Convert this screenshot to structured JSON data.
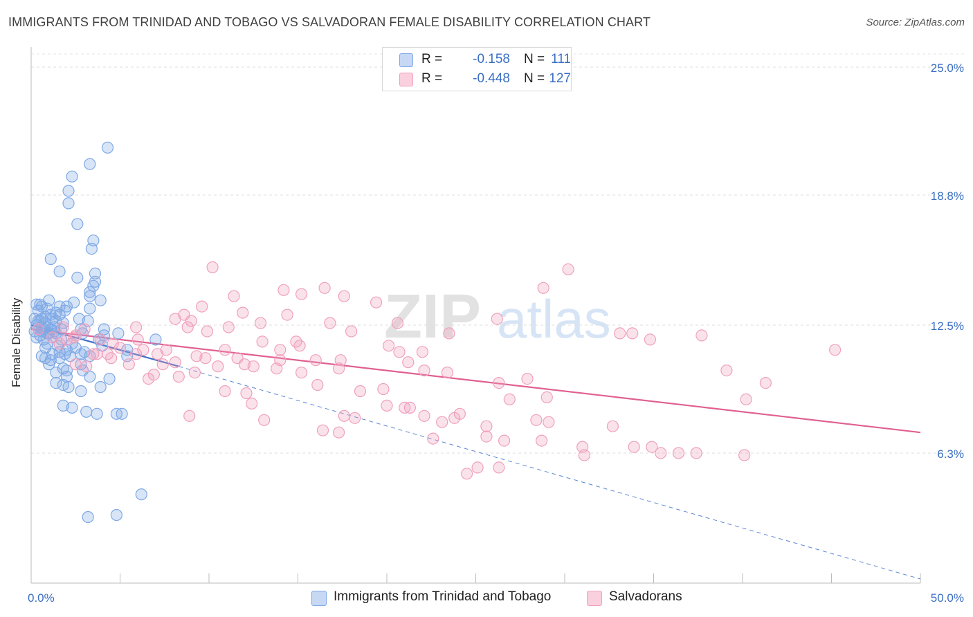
{
  "header": {
    "title": "IMMIGRANTS FROM TRINIDAD AND TOBAGO VS SALVADORAN FEMALE DISABILITY CORRELATION CHART",
    "source": "Source: ZipAtlas.com"
  },
  "watermark": {
    "zip": "ZIP",
    "atlas": "atlas"
  },
  "stats": [
    {
      "r_label": "R =",
      "r_value": "-0.158",
      "n_label": "N =",
      "n_value": "111",
      "color": "#7ea8e6"
    },
    {
      "r_label": "R =",
      "r_value": "-0.448",
      "n_label": "N =",
      "n_value": "127",
      "color": "#f0a0bc"
    }
  ],
  "legend": [
    {
      "label": "Immigrants from Trinidad and Tobago",
      "color": "#7ea8e6"
    },
    {
      "label": "Salvadorans",
      "color": "#f0a0bc"
    }
  ],
  "chart_data": {
    "type": "scatter",
    "title": "IMMIGRANTS FROM TRINIDAD AND TOBAGO VS SALVADORAN FEMALE DISABILITY CORRELATION CHART",
    "xlabel": "",
    "ylabel": "Female Disability",
    "x_min_label": "0.0%",
    "x_max_label": "50.0%",
    "y_tick_labels": [
      "6.3%",
      "12.5%",
      "18.8%",
      "25.0%"
    ],
    "xlim": [
      0,
      50
    ],
    "ylim": [
      0,
      25.5
    ],
    "y_ticks": [
      6.3,
      12.5,
      18.8,
      25.0
    ],
    "x_ticks": [
      0,
      5,
      10,
      15,
      20,
      25,
      30,
      35,
      40,
      45,
      50
    ],
    "grid": "horizontal-dashed",
    "legend_position": "bottom-center",
    "series": [
      {
        "name": "Immigrants from Trinidad and Tobago",
        "color": "#7ea8e6",
        "trend": {
          "x0": 0,
          "y0": 12.5,
          "x1": 8.3,
          "y1": 10.5,
          "dashed_to_x": 50,
          "dashed_to_y": 0.2
        },
        "points": [
          [
            4.3,
            21.1
          ],
          [
            3.3,
            20.3
          ],
          [
            2.3,
            19.7
          ],
          [
            2.1,
            19.0
          ],
          [
            2.1,
            18.4
          ],
          [
            2.6,
            17.4
          ],
          [
            3.5,
            16.6
          ],
          [
            3.4,
            16.2
          ],
          [
            1.1,
            15.7
          ],
          [
            1.6,
            15.1
          ],
          [
            3.6,
            15.0
          ],
          [
            2.6,
            14.8
          ],
          [
            3.6,
            14.6
          ],
          [
            3.5,
            14.4
          ],
          [
            3.3,
            14.1
          ],
          [
            3.3,
            13.9
          ],
          [
            3.9,
            13.7
          ],
          [
            1.0,
            13.7
          ],
          [
            0.5,
            13.5
          ],
          [
            0.3,
            13.5
          ],
          [
            0.6,
            13.4
          ],
          [
            2.4,
            13.6
          ],
          [
            1.6,
            13.4
          ],
          [
            2.0,
            13.4
          ],
          [
            0.9,
            13.3
          ],
          [
            0.4,
            13.2
          ],
          [
            1.9,
            13.2
          ],
          [
            1.4,
            13.1
          ],
          [
            1.6,
            13.0
          ],
          [
            1.1,
            13.0
          ],
          [
            3.3,
            13.3
          ],
          [
            0.8,
            12.9
          ],
          [
            0.6,
            12.8
          ],
          [
            1.2,
            12.8
          ],
          [
            1.4,
            12.7
          ],
          [
            2.7,
            12.8
          ],
          [
            3.2,
            12.7
          ],
          [
            0.5,
            12.7
          ],
          [
            1.8,
            12.6
          ],
          [
            0.8,
            12.6
          ],
          [
            0.3,
            12.5
          ],
          [
            0.6,
            12.4
          ],
          [
            0.9,
            12.4
          ],
          [
            1.3,
            12.4
          ],
          [
            0.4,
            12.3
          ],
          [
            0.7,
            12.3
          ],
          [
            0.2,
            12.2
          ],
          [
            1.1,
            12.3
          ],
          [
            1.7,
            12.3
          ],
          [
            2.8,
            12.3
          ],
          [
            4.1,
            12.3
          ],
          [
            0.6,
            12.2
          ],
          [
            0.9,
            12.1
          ],
          [
            1.4,
            12.1
          ],
          [
            4.9,
            12.1
          ],
          [
            2.9,
            12.1
          ],
          [
            4.1,
            12.0
          ],
          [
            0.5,
            12.0
          ],
          [
            1.2,
            11.9
          ],
          [
            0.3,
            11.9
          ],
          [
            0.7,
            11.8
          ],
          [
            1.7,
            11.8
          ],
          [
            3.8,
            11.8
          ],
          [
            7.0,
            11.8
          ],
          [
            0.9,
            11.6
          ],
          [
            1.5,
            11.5
          ],
          [
            2.3,
            11.6
          ],
          [
            4.0,
            11.5
          ],
          [
            0.8,
            11.4
          ],
          [
            2.0,
            11.3
          ],
          [
            5.4,
            11.3
          ],
          [
            1.6,
            11.2
          ],
          [
            2.8,
            11.1
          ],
          [
            1.9,
            11.1
          ],
          [
            1.2,
            11.1
          ],
          [
            0.6,
            11.0
          ],
          [
            2.2,
            11.0
          ],
          [
            0.8,
            10.9
          ],
          [
            1.6,
            10.9
          ],
          [
            3.3,
            11.0
          ],
          [
            5.4,
            11.0
          ],
          [
            1.1,
            10.8
          ],
          [
            1.0,
            10.6
          ],
          [
            2.8,
            10.6
          ],
          [
            1.8,
            10.4
          ],
          [
            2.0,
            10.3
          ],
          [
            2.9,
            10.3
          ],
          [
            1.4,
            10.2
          ],
          [
            2.0,
            10.0
          ],
          [
            3.3,
            10.0
          ],
          [
            4.4,
            9.9
          ],
          [
            1.4,
            9.7
          ],
          [
            1.8,
            9.6
          ],
          [
            2.1,
            9.5
          ],
          [
            3.9,
            9.5
          ],
          [
            2.8,
            9.3
          ],
          [
            1.8,
            8.6
          ],
          [
            2.3,
            8.5
          ],
          [
            3.1,
            8.3
          ],
          [
            3.7,
            8.2
          ],
          [
            4.8,
            8.2
          ],
          [
            5.1,
            8.2
          ],
          [
            6.2,
            4.3
          ],
          [
            3.2,
            3.2
          ],
          [
            4.8,
            3.3
          ],
          [
            1.3,
            12.2
          ],
          [
            0.4,
            12.7
          ],
          [
            2.5,
            11.4
          ],
          [
            1.0,
            12.1
          ],
          [
            3.0,
            11.2
          ],
          [
            0.2,
            12.8
          ]
        ]
      },
      {
        "name": "Salvadorans",
        "color": "#f0a0bc",
        "trend": {
          "x0": 0,
          "y0": 12.3,
          "x1": 50,
          "y1": 7.3
        },
        "points": [
          [
            30.2,
            15.2
          ],
          [
            10.2,
            15.3
          ],
          [
            28.8,
            14.3
          ],
          [
            14.2,
            14.2
          ],
          [
            16.5,
            14.3
          ],
          [
            15.2,
            14.0
          ],
          [
            11.4,
            13.9
          ],
          [
            17.6,
            13.9
          ],
          [
            19.4,
            13.6
          ],
          [
            9.6,
            13.4
          ],
          [
            11.9,
            13.1
          ],
          [
            8.6,
            13.0
          ],
          [
            14.4,
            13.0
          ],
          [
            26.2,
            12.8
          ],
          [
            8.1,
            12.8
          ],
          [
            9.0,
            12.7
          ],
          [
            12.9,
            12.6
          ],
          [
            16.8,
            12.6
          ],
          [
            20.6,
            12.6
          ],
          [
            5.9,
            12.4
          ],
          [
            11.1,
            12.4
          ],
          [
            8.8,
            12.4
          ],
          [
            9.9,
            12.2
          ],
          [
            18.0,
            12.2
          ],
          [
            23.5,
            12.1
          ],
          [
            33.1,
            12.1
          ],
          [
            33.8,
            12.1
          ],
          [
            37.7,
            12.0
          ],
          [
            34.8,
            11.8
          ],
          [
            0.4,
            12.3
          ],
          [
            3.0,
            12.3
          ],
          [
            1.2,
            11.9
          ],
          [
            2.4,
            11.9
          ],
          [
            3.9,
            11.8
          ],
          [
            2.0,
            11.8
          ],
          [
            1.6,
            11.6
          ],
          [
            4.6,
            11.6
          ],
          [
            13.0,
            11.7
          ],
          [
            14.9,
            11.7
          ],
          [
            15.1,
            11.5
          ],
          [
            20.1,
            11.5
          ],
          [
            5.0,
            11.4
          ],
          [
            6.3,
            11.3
          ],
          [
            7.6,
            11.3
          ],
          [
            10.9,
            11.3
          ],
          [
            14.0,
            11.3
          ],
          [
            20.7,
            11.2
          ],
          [
            22.0,
            11.2
          ],
          [
            45.2,
            11.3
          ],
          [
            3.5,
            11.1
          ],
          [
            3.7,
            11.1
          ],
          [
            4.3,
            11.1
          ],
          [
            5.9,
            11.1
          ],
          [
            7.1,
            11.1
          ],
          [
            9.8,
            10.9
          ],
          [
            11.6,
            10.9
          ],
          [
            14.0,
            10.8
          ],
          [
            16.0,
            10.8
          ],
          [
            17.4,
            10.8
          ],
          [
            21.2,
            10.7
          ],
          [
            2.5,
            10.6
          ],
          [
            3.1,
            10.5
          ],
          [
            5.5,
            10.6
          ],
          [
            7.4,
            10.6
          ],
          [
            8.1,
            10.7
          ],
          [
            10.5,
            10.5
          ],
          [
            12.0,
            10.6
          ],
          [
            12.5,
            10.5
          ],
          [
            17.3,
            10.4
          ],
          [
            22.1,
            10.3
          ],
          [
            9.2,
            10.2
          ],
          [
            15.2,
            10.2
          ],
          [
            23.4,
            10.2
          ],
          [
            6.9,
            10.1
          ],
          [
            8.3,
            10.0
          ],
          [
            26.3,
            9.7
          ],
          [
            27.9,
            9.9
          ],
          [
            39.1,
            10.3
          ],
          [
            41.3,
            9.7
          ],
          [
            6.6,
            9.9
          ],
          [
            16.1,
            9.6
          ],
          [
            19.8,
            9.4
          ],
          [
            10.9,
            9.3
          ],
          [
            12.1,
            9.2
          ],
          [
            18.5,
            9.3
          ],
          [
            29.0,
            9.0
          ],
          [
            26.9,
            8.9
          ],
          [
            40.2,
            8.9
          ],
          [
            12.4,
            8.7
          ],
          [
            20.0,
            8.6
          ],
          [
            21.0,
            8.5
          ],
          [
            21.3,
            8.5
          ],
          [
            8.9,
            8.1
          ],
          [
            17.6,
            8.1
          ],
          [
            18.2,
            8.0
          ],
          [
            22.1,
            8.1
          ],
          [
            23.8,
            8.0
          ],
          [
            24.1,
            8.2
          ],
          [
            28.4,
            7.9
          ],
          [
            29.1,
            7.8
          ],
          [
            32.7,
            7.6
          ],
          [
            13.1,
            7.9
          ],
          [
            23.1,
            7.8
          ],
          [
            25.6,
            7.6
          ],
          [
            17.3,
            7.3
          ],
          [
            16.4,
            7.4
          ],
          [
            22.6,
            7.0
          ],
          [
            25.6,
            7.1
          ],
          [
            26.6,
            6.9
          ],
          [
            28.7,
            6.9
          ],
          [
            31.0,
            6.6
          ],
          [
            31.1,
            6.2
          ],
          [
            34.9,
            6.6
          ],
          [
            37.4,
            6.3
          ],
          [
            40.1,
            6.2
          ],
          [
            35.4,
            6.3
          ],
          [
            26.3,
            5.6
          ],
          [
            24.5,
            5.3
          ],
          [
            25.1,
            5.6
          ],
          [
            33.9,
            6.6
          ],
          [
            36.4,
            6.3
          ],
          [
            1.8,
            12.4
          ],
          [
            2.5,
            12.0
          ],
          [
            4.5,
            10.9
          ],
          [
            6.0,
            11.8
          ],
          [
            9.3,
            11.0
          ],
          [
            13.8,
            10.4
          ]
        ]
      }
    ]
  }
}
